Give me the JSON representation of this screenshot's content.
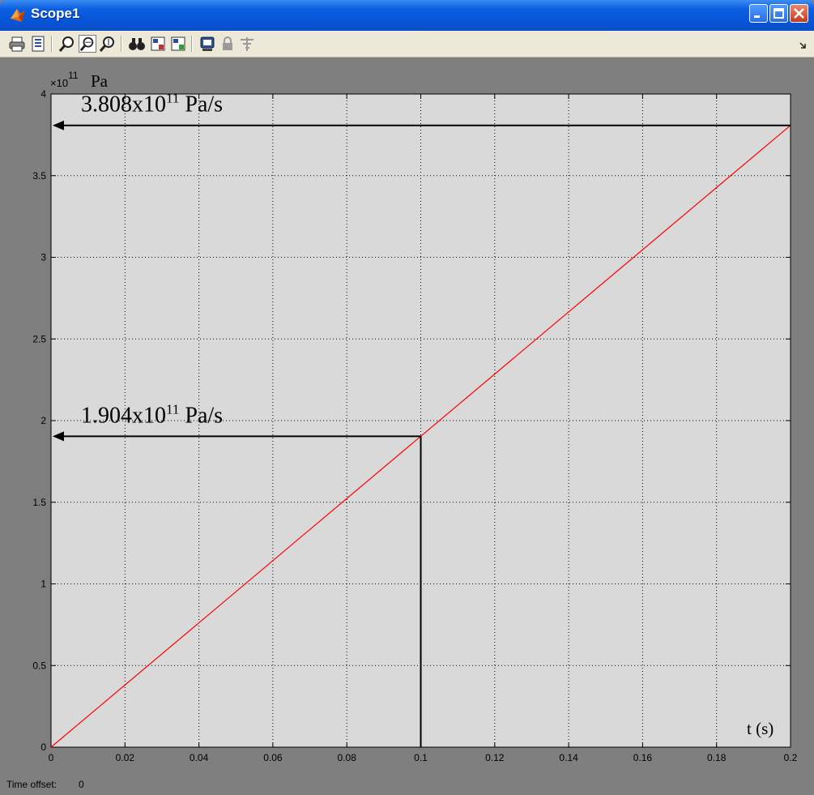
{
  "window": {
    "title": "Scope1",
    "time_offset_label": "Time offset:",
    "time_offset_value": "0"
  },
  "toolbar": {
    "icons": [
      "print-icon",
      "parameters-icon",
      "zoom-icon",
      "zoom-x-icon",
      "zoom-y-icon",
      "autoscale-icon",
      "save-axes-icon",
      "restore-axes-icon",
      "floating-scope-icon",
      "lock-axes-icon",
      "signal-selection-icon"
    ]
  },
  "colors": {
    "plot_background": "#d9d9d9",
    "figure_background": "#7f7f7f",
    "line": "#ff0000",
    "annotation": "#000000"
  },
  "chart_data": {
    "type": "line",
    "x": [
      0,
      0.2
    ],
    "series": [
      {
        "values": [
          0,
          3.808
        ]
      }
    ],
    "xlim": [
      0,
      0.2
    ],
    "ylim": [
      0,
      4
    ],
    "xticks": [
      "0",
      "0.02",
      "0.04",
      "0.06",
      "0.08",
      "0.1",
      "0.12",
      "0.14",
      "0.16",
      "0.18",
      "0.2"
    ],
    "yticks": [
      "0",
      "0.5",
      "1",
      "1.5",
      "2",
      "2.5",
      "3",
      "3.5",
      "4"
    ],
    "y_exponent_prefix": "×10",
    "y_exponent_power": "11",
    "ylabel": "Pa",
    "xlabel": "t (s)",
    "grid": true,
    "annotations": [
      {
        "text": "3.808x10",
        "sup": "11",
        "suffix": " Pa/s",
        "x": 0.2,
        "y": 3.808
      },
      {
        "text": "1.904x10",
        "sup": "11",
        "suffix": " Pa/s",
        "x": 0.1,
        "y": 1.904
      }
    ]
  }
}
